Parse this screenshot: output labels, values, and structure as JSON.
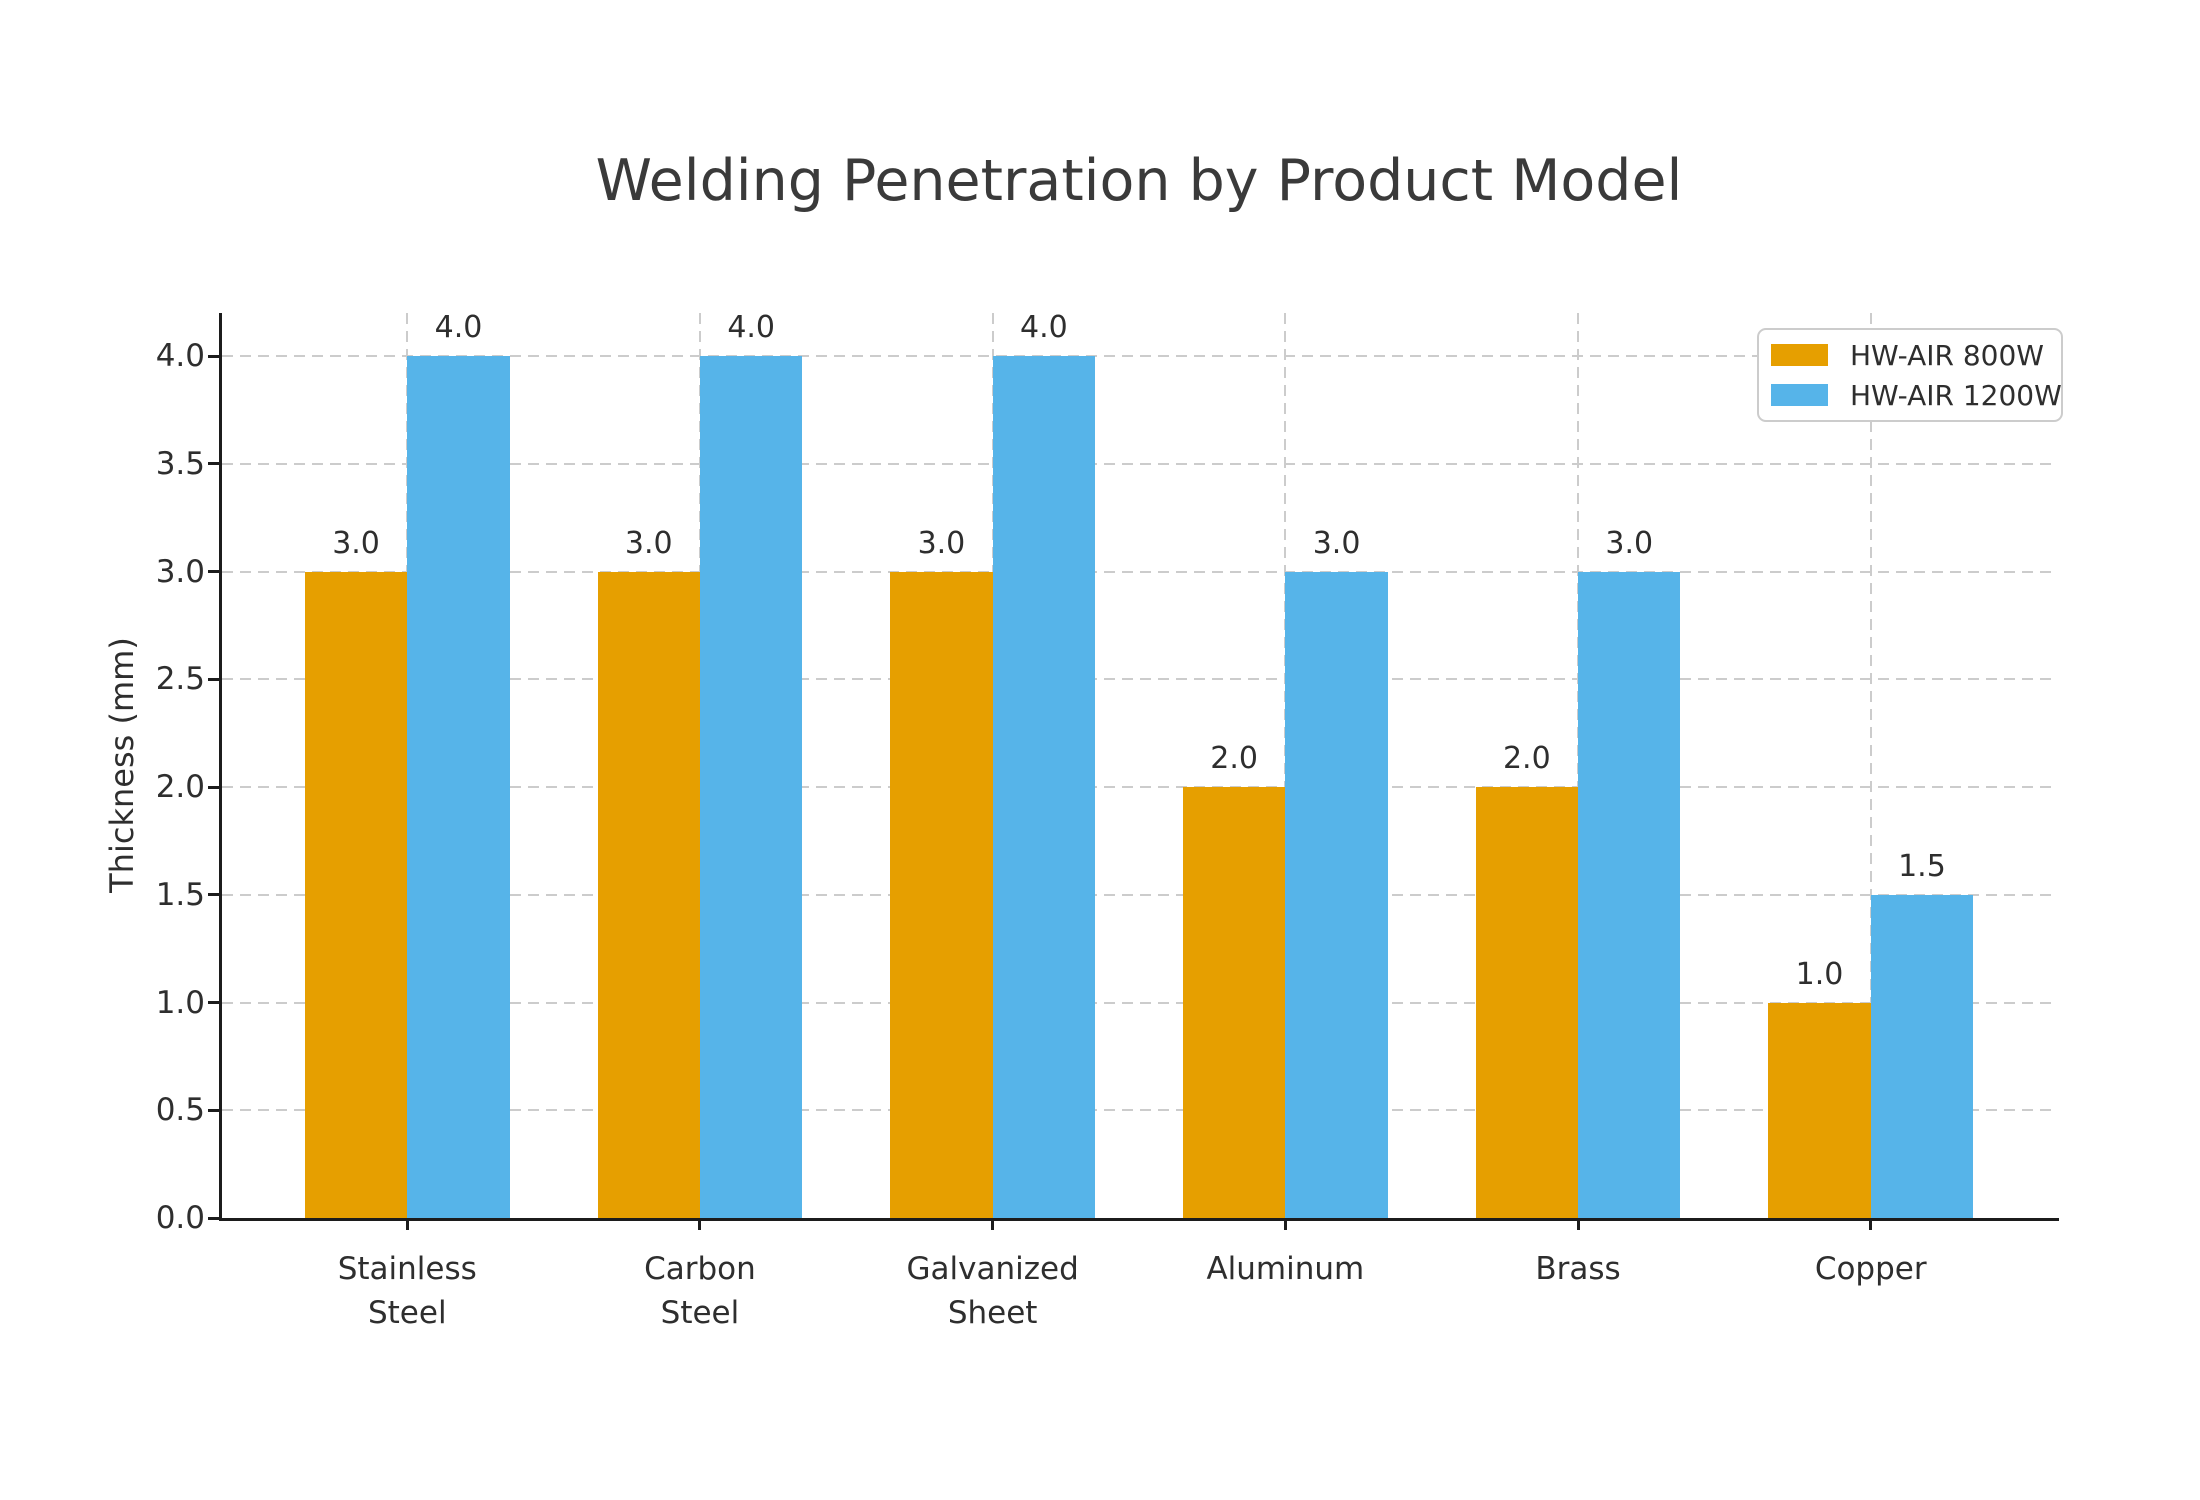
{
  "chart_data": {
    "type": "bar",
    "title": "Welding Penetration by Product Model",
    "ylabel": "Thickness (mm)",
    "xlabel": "",
    "categories": [
      "Stainless\nSteel",
      "Carbon\nSteel",
      "Galvanized\nSheet",
      "Aluminum",
      "Brass",
      "Copper"
    ],
    "series": [
      {
        "name": "HW-AIR 800W",
        "color": "#E69F00",
        "values": [
          3.0,
          3.0,
          3.0,
          2.0,
          2.0,
          1.0
        ]
      },
      {
        "name": "HW-AIR 1200W",
        "color": "#56B4E9",
        "values": [
          4.0,
          4.0,
          4.0,
          3.0,
          3.0,
          1.5
        ]
      }
    ],
    "ylim": [
      0,
      4.2
    ],
    "yticks": [
      0.0,
      0.5,
      1.0,
      1.5,
      2.0,
      2.5,
      3.0,
      3.5,
      4.0
    ],
    "bar_width": 0.35,
    "grid": true,
    "legend_position": "upper right",
    "value_labels": true,
    "value_label_decimals": 1
  },
  "colors": {
    "grid": "#cccccc",
    "spine": "#1c1c1c",
    "text": "#2e2e2e",
    "title": "#3a3a3a",
    "background": "#ffffff"
  }
}
